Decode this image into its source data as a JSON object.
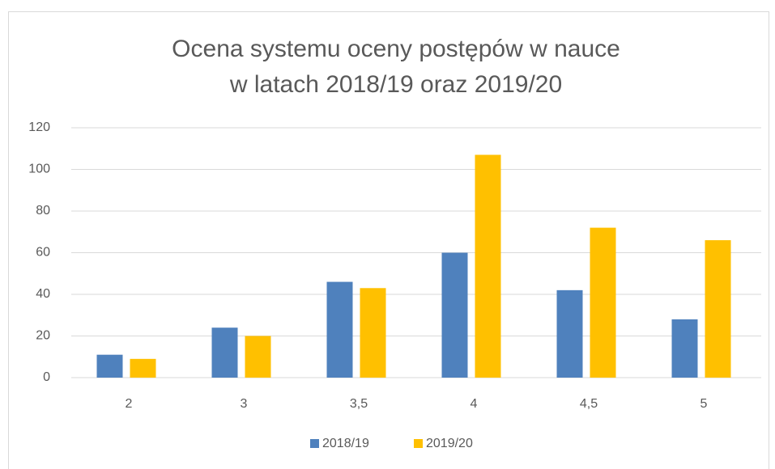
{
  "chart_data": {
    "type": "bar",
    "title": [
      "Ocena systemu oceny postępów w nauce",
      "w latach 2018/19 oraz 2019/20"
    ],
    "categories": [
      "2",
      "3",
      "3,5",
      "4",
      "4,5",
      "5"
    ],
    "series": [
      {
        "name": "2018/19",
        "color": "#4f81bd",
        "values": [
          11,
          24,
          46,
          60,
          42,
          28
        ]
      },
      {
        "name": "2019/20",
        "color": "#ffc000",
        "values": [
          9,
          20,
          43,
          107,
          72,
          66
        ]
      }
    ],
    "ylim": [
      0,
      120
    ],
    "yticks": [
      0,
      20,
      40,
      60,
      80,
      100,
      120
    ],
    "grid": true,
    "legend": "bottom"
  }
}
